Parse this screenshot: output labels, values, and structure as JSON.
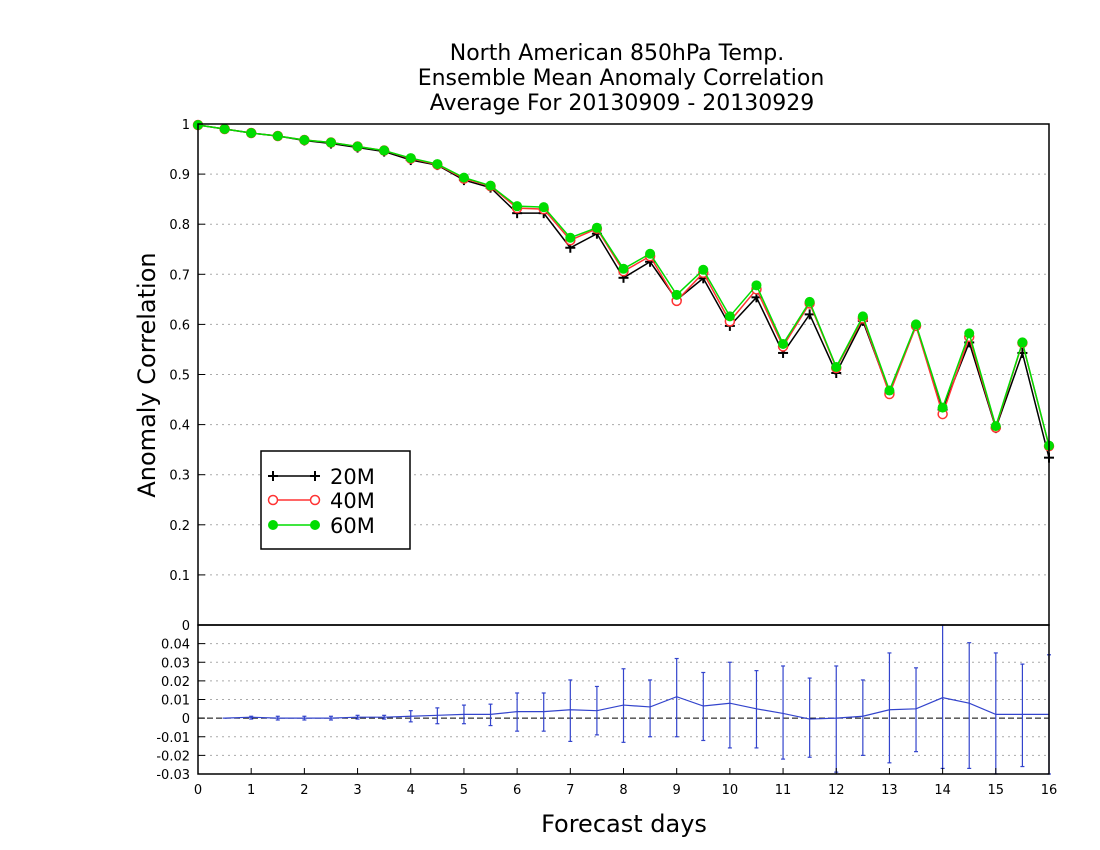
{
  "chart_data": {
    "type": "line",
    "title": [
      "North American 850hPa Temp.",
      "Ensemble Mean Anomaly Correlation",
      "Average For 20130909 - 20130929"
    ],
    "xlabel": "Forecast days",
    "ylabel": "Anomaly Correlation",
    "xlim": [
      0,
      16
    ],
    "x_ticks": [
      "0",
      "1",
      "2",
      "3",
      "4",
      "5",
      "6",
      "7",
      "8",
      "9",
      "10",
      "11",
      "12",
      "13",
      "14",
      "15",
      "16"
    ],
    "main": {
      "ylim": [
        0,
        1
      ],
      "y_ticks": [
        "0",
        "0.1",
        "0.2",
        "0.3",
        "0.4",
        "0.5",
        "0.6",
        "0.7",
        "0.8",
        "0.9",
        "1"
      ],
      "grid": true,
      "legend_position": "lower-left",
      "x": [
        0,
        0.5,
        1,
        1.5,
        2,
        2.5,
        3,
        3.5,
        4,
        4.5,
        5,
        5.5,
        6,
        6.5,
        7,
        7.5,
        8,
        8.5,
        9,
        9.5,
        10,
        10.5,
        11,
        11.5,
        12,
        12.5,
        13,
        13.5,
        14,
        14.5,
        15,
        15.5,
        16
      ],
      "series": [
        {
          "name": "20M",
          "color": "#000000",
          "marker": "plus",
          "values": [
            0.998,
            0.99,
            0.982,
            0.976,
            0.967,
            0.961,
            0.953,
            0.945,
            0.928,
            0.918,
            0.888,
            0.873,
            0.822,
            0.822,
            0.753,
            0.781,
            0.693,
            0.725,
            0.649,
            0.692,
            0.597,
            0.654,
            0.543,
            0.62,
            0.503,
            0.607,
            0.464,
            0.597,
            0.43,
            0.564,
            0.393,
            0.543,
            0.334
          ]
        },
        {
          "name": "40M",
          "color": "#ff3333",
          "marker": "open-circle",
          "values": [
            0.998,
            0.99,
            0.982,
            0.976,
            0.968,
            0.963,
            0.955,
            0.947,
            0.931,
            0.919,
            0.891,
            0.876,
            0.832,
            0.83,
            0.768,
            0.791,
            0.706,
            0.736,
            0.647,
            0.703,
            0.606,
            0.67,
            0.556,
            0.642,
            0.513,
            0.612,
            0.461,
            0.597,
            0.421,
            0.575,
            0.394,
            0.563,
            0.357
          ]
        },
        {
          "name": "60M",
          "color": "#00dd00",
          "marker": "filled-circle",
          "values": [
            0.998,
            0.99,
            0.982,
            0.976,
            0.968,
            0.963,
            0.955,
            0.947,
            0.932,
            0.92,
            0.893,
            0.877,
            0.836,
            0.834,
            0.773,
            0.793,
            0.711,
            0.741,
            0.659,
            0.709,
            0.616,
            0.678,
            0.561,
            0.645,
            0.515,
            0.616,
            0.468,
            0.6,
            0.434,
            0.582,
            0.397,
            0.564,
            0.358
          ]
        }
      ]
    },
    "diff": {
      "ylim": [
        -0.03,
        0.05
      ],
      "y_ticks": [
        "-0.03",
        "-0.02",
        "-0.01",
        "0",
        "0.01",
        "0.02",
        "0.03",
        "0.04"
      ],
      "grid": true,
      "zero_line": true,
      "color": "#3344cc",
      "x": [
        0.5,
        1,
        1.5,
        2,
        2.5,
        3,
        3.5,
        4,
        4.5,
        5,
        5.5,
        6,
        6.5,
        7,
        7.5,
        8,
        8.5,
        9,
        9.5,
        10,
        10.5,
        11,
        11.5,
        12,
        12.5,
        13,
        13.5,
        14,
        14.5,
        15,
        15.5,
        16
      ],
      "values": [
        0,
        0.0005,
        0,
        0,
        0,
        0.0005,
        0.0005,
        0.001,
        0.0015,
        0.002,
        0.002,
        0.0035,
        0.0035,
        0.0045,
        0.004,
        0.007,
        0.006,
        0.0115,
        0.0065,
        0.008,
        0.005,
        0.0025,
        -0.0005,
        0,
        0.001,
        0.0045,
        0.005,
        0.011,
        0.008,
        0.002,
        0.002,
        0.002
      ],
      "err_low": [
        0,
        -0.0005,
        -0.001,
        -0.001,
        -0.001,
        -0.0005,
        -0.0005,
        -0.002,
        -0.003,
        -0.003,
        -0.004,
        -0.007,
        -0.007,
        -0.0125,
        -0.009,
        -0.013,
        -0.01,
        -0.01,
        -0.012,
        -0.016,
        -0.016,
        -0.022,
        -0.021,
        -0.029,
        -0.02,
        -0.024,
        -0.018,
        -0.027,
        -0.027,
        -0.031,
        -0.026,
        -0.03
      ],
      "err_high": [
        0,
        0.001,
        0.001,
        0.001,
        0.001,
        0.0015,
        0.0015,
        0.004,
        0.0055,
        0.007,
        0.0075,
        0.0135,
        0.0135,
        0.0205,
        0.017,
        0.0265,
        0.0205,
        0.032,
        0.0245,
        0.03,
        0.0255,
        0.028,
        0.0215,
        0.028,
        0.0205,
        0.035,
        0.027,
        0.05,
        0.0405,
        0.035,
        0.029,
        0.034
      ]
    }
  }
}
